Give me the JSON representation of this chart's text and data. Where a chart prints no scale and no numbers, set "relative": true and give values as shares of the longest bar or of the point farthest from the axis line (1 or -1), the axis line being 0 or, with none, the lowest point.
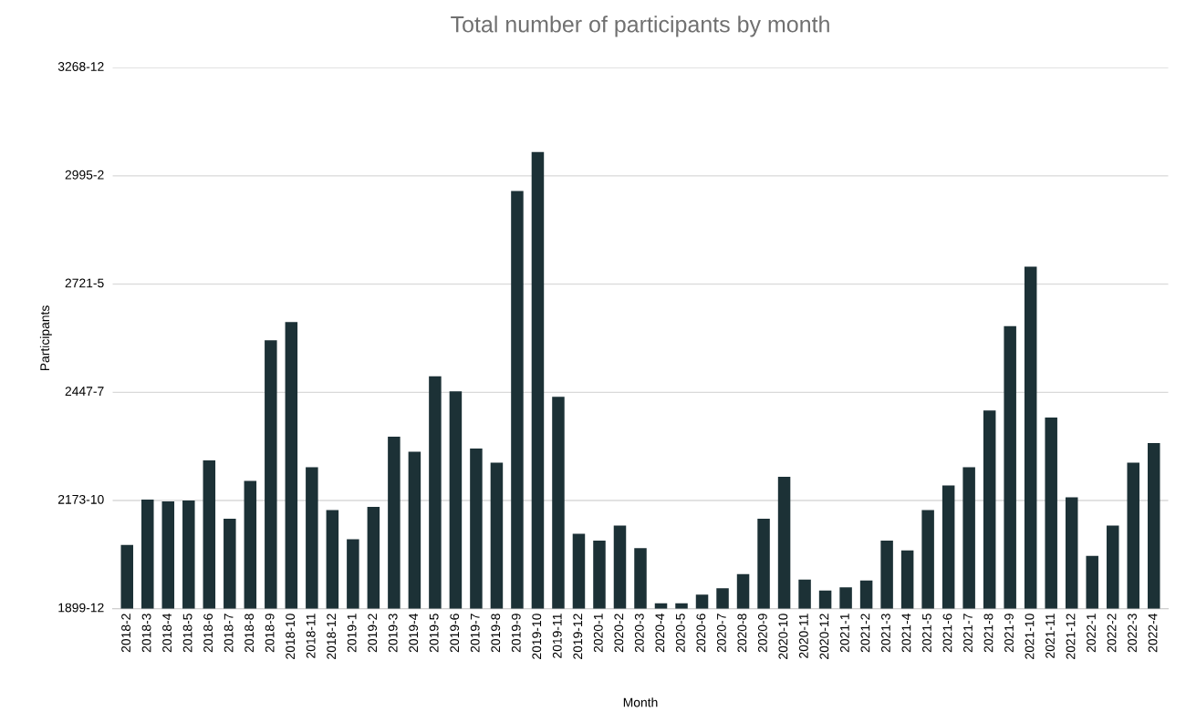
{
  "chart_data": {
    "type": "bar",
    "title": "Total number of participants by month",
    "xlabel": "Month",
    "ylabel": "Participants",
    "categories": [
      "2018-2",
      "2018-3",
      "2018-4",
      "2018-5",
      "2018-6",
      "2018-7",
      "2018-8",
      "2018-9",
      "2018-10",
      "2018-11",
      "2018-12",
      "2019-1",
      "2019-2",
      "2019-3",
      "2019-4",
      "2019-5",
      "2019-6",
      "2019-7",
      "2019-8",
      "2019-9",
      "2019-10",
      "2019-11",
      "2019-12",
      "2020-1",
      "2020-2",
      "2020-3",
      "2020-4",
      "2020-5",
      "2020-6",
      "2020-7",
      "2020-8",
      "2020-9",
      "2020-10",
      "2020-11",
      "2020-12",
      "2021-1",
      "2021-2",
      "2021-3",
      "2021-4",
      "2021-5",
      "2021-6",
      "2021-7",
      "2021-8",
      "2021-9",
      "2021-10",
      "2021-11",
      "2021-12",
      "2022-1",
      "2022-2",
      "2022-3",
      "2022-4"
    ],
    "values": [
      0.14,
      0.239,
      0.235,
      0.237,
      0.325,
      0.197,
      0.28,
      0.588,
      0.628,
      0.31,
      0.216,
      0.152,
      0.223,
      0.377,
      0.344,
      0.509,
      0.476,
      0.351,
      0.32,
      0.915,
      1,
      0.464,
      0.164,
      0.149,
      0.182,
      0.133,
      0.012,
      0.012,
      0.031,
      0.045,
      0.076,
      0.197,
      0.289,
      0.064,
      0.04,
      0.047,
      0.062,
      0.149,
      0.128,
      0.216,
      0.27,
      0.31,
      0.434,
      0.619,
      0.749,
      0.419,
      0.244,
      0.116,
      0.182,
      0.32,
      0.363
    ],
    "relative": true,
    "color": "#1c3136",
    "annotations": [
      "1899-12",
      "2173-10",
      "2447-7",
      "2721-5",
      "2995-2",
      "3268-12"
    ],
    "grid": "y"
  }
}
